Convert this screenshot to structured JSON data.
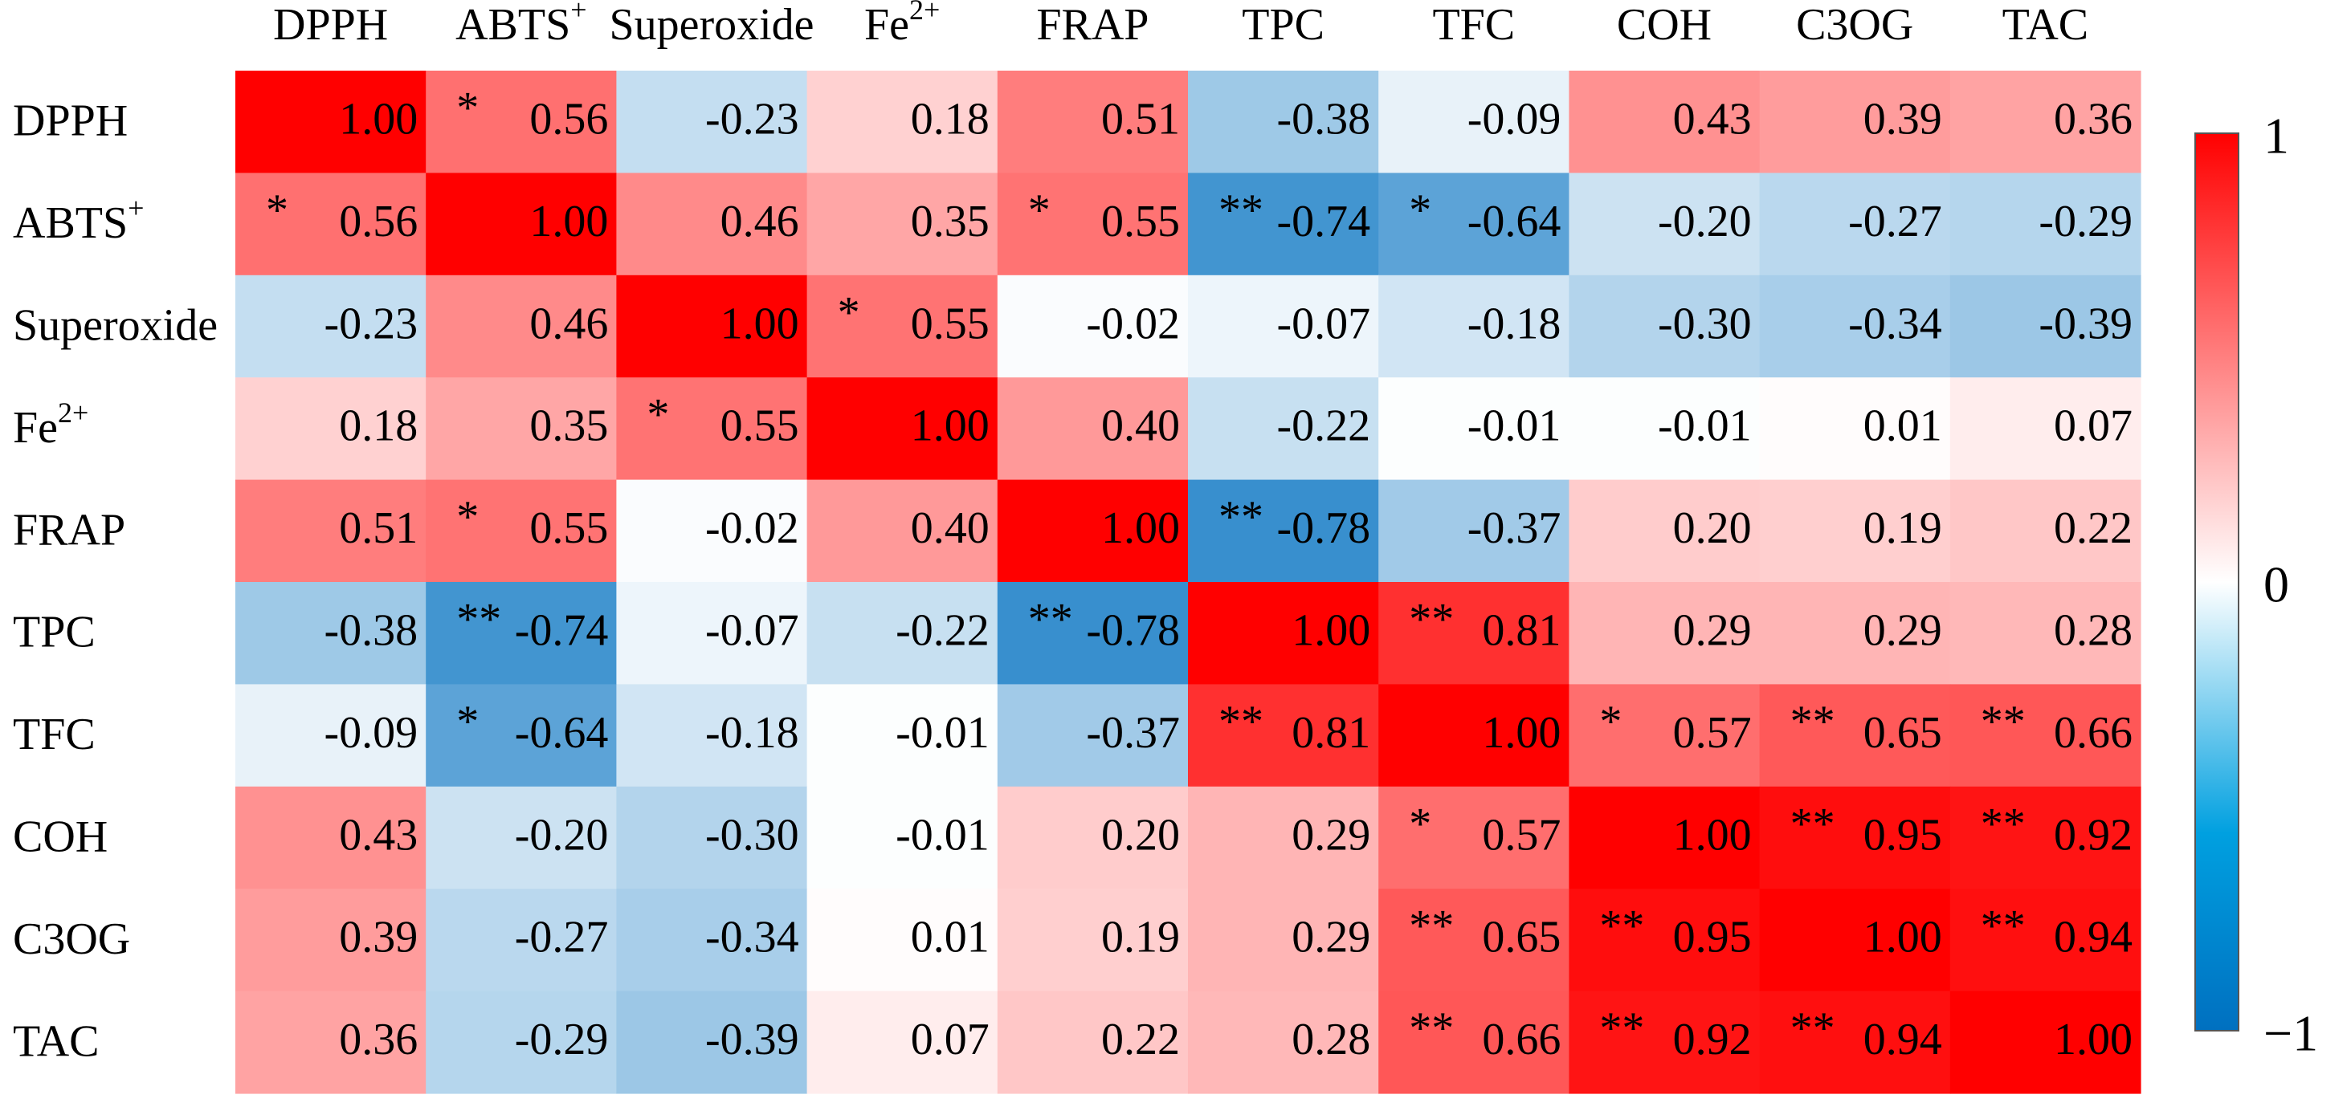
{
  "chart_data": {
    "type": "heatmap",
    "title": "",
    "x_labels": [
      {
        "base": "DPPH",
        "sup": ""
      },
      {
        "base": "ABTS",
        "sup": "+"
      },
      {
        "base": "Superoxide",
        "sup": ""
      },
      {
        "base": "Fe",
        "sup": "2+"
      },
      {
        "base": "FRAP",
        "sup": ""
      },
      {
        "base": "TPC",
        "sup": ""
      },
      {
        "base": "TFC",
        "sup": ""
      },
      {
        "base": "COH",
        "sup": ""
      },
      {
        "base": "C3OG",
        "sup": ""
      },
      {
        "base": "TAC",
        "sup": ""
      }
    ],
    "y_labels": [
      {
        "base": "DPPH",
        "sup": ""
      },
      {
        "base": "ABTS",
        "sup": "+"
      },
      {
        "base": "Superoxide",
        "sup": ""
      },
      {
        "base": "Fe",
        "sup": "2+"
      },
      {
        "base": "FRAP",
        "sup": ""
      },
      {
        "base": "TPC",
        "sup": ""
      },
      {
        "base": "TFC",
        "sup": ""
      },
      {
        "base": "COH",
        "sup": ""
      },
      {
        "base": "C3OG",
        "sup": ""
      },
      {
        "base": "TAC",
        "sup": ""
      }
    ],
    "values": [
      [
        1.0,
        0.56,
        -0.23,
        0.18,
        0.51,
        -0.38,
        -0.09,
        0.43,
        0.39,
        0.36
      ],
      [
        0.56,
        1.0,
        0.46,
        0.35,
        0.55,
        -0.74,
        -0.64,
        -0.2,
        -0.27,
        -0.29
      ],
      [
        -0.23,
        0.46,
        1.0,
        0.55,
        -0.02,
        -0.07,
        -0.18,
        -0.3,
        -0.34,
        -0.39
      ],
      [
        0.18,
        0.35,
        0.55,
        1.0,
        0.4,
        -0.22,
        -0.01,
        -0.01,
        0.01,
        0.07
      ],
      [
        0.51,
        0.55,
        -0.02,
        0.4,
        1.0,
        -0.78,
        -0.37,
        0.2,
        0.19,
        0.22
      ],
      [
        -0.38,
        -0.74,
        -0.07,
        -0.22,
        -0.78,
        1.0,
        0.81,
        0.29,
        0.29,
        0.28
      ],
      [
        -0.09,
        -0.64,
        -0.18,
        -0.01,
        -0.37,
        0.81,
        1.0,
        0.57,
        0.65,
        0.66
      ],
      [
        0.43,
        -0.2,
        -0.3,
        -0.01,
        0.2,
        0.29,
        0.57,
        1.0,
        0.95,
        0.92
      ],
      [
        0.39,
        -0.27,
        -0.34,
        0.01,
        0.19,
        0.29,
        0.65,
        0.95,
        1.0,
        0.94
      ],
      [
        0.36,
        -0.29,
        -0.39,
        0.07,
        0.22,
        0.28,
        0.66,
        0.92,
        0.94,
        1.0
      ]
    ],
    "significance": [
      [
        "",
        "*",
        "",
        "",
        "",
        "",
        "",
        "",
        "",
        ""
      ],
      [
        "*",
        "",
        "",
        "",
        "*",
        "**",
        "*",
        "",
        "",
        ""
      ],
      [
        "",
        "",
        "",
        "*",
        "",
        "",
        "",
        "",
        "",
        ""
      ],
      [
        "",
        "",
        "*",
        "",
        "",
        "",
        "",
        "",
        "",
        ""
      ],
      [
        "",
        "*",
        "",
        "",
        "",
        "**",
        "",
        "",
        "",
        ""
      ],
      [
        "",
        "**",
        "",
        "",
        "**",
        "",
        "**",
        "",
        "",
        ""
      ],
      [
        "",
        "*",
        "",
        "",
        "",
        "**",
        "",
        "*",
        "**",
        "**"
      ],
      [
        "",
        "",
        "",
        "",
        "",
        "",
        "*",
        "",
        "**",
        "**"
      ],
      [
        "",
        "",
        "",
        "",
        "",
        "",
        "**",
        "**",
        "",
        "**"
      ],
      [
        "",
        "",
        "",
        "",
        "",
        "",
        "**",
        "**",
        "**",
        ""
      ]
    ],
    "value_range": [
      -1,
      1
    ],
    "colorbar": {
      "position": "right",
      "tick_labels": [
        "1",
        "0",
        "−1"
      ],
      "tick_values": [
        1,
        0,
        -1
      ]
    },
    "colors": {
      "positive": "#ff0000",
      "zero": "#ffffff",
      "negative": "#0070c0",
      "colorbar_mid": "#00a0e0"
    },
    "grid": false
  }
}
